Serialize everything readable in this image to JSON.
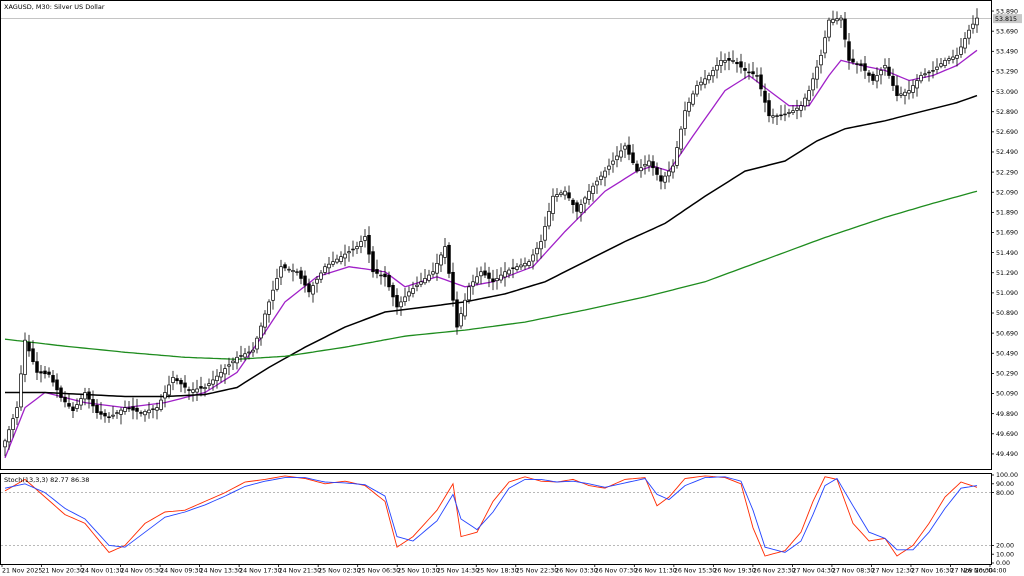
{
  "header": {
    "title": "XAGUSD, M30:  Silver US Dollar",
    "stoch_label": "Stoch(13,3,3) 82.77 86.38"
  },
  "price_badge": "53.815",
  "colors": {
    "bull_candle": "#ffffff",
    "bear_candle": "#000000",
    "ema_fast": "#a020c8",
    "ema_mid": "#000000",
    "ema_slow": "#1e8c1e",
    "stoch_main": "#ff2a00",
    "stoch_signal": "#2444ff",
    "grid_level": "#a0a0a0"
  },
  "chart_data": [
    {
      "type": "candlestick",
      "title": "XAGUSD, M30:  Silver US Dollar",
      "ylim": [
        49.35,
        53.98
      ],
      "y_ticks": [
        "53.890",
        "53.690",
        "53.490",
        "53.290",
        "53.090",
        "52.890",
        "52.690",
        "52.490",
        "52.290",
        "52.090",
        "51.890",
        "51.690",
        "51.490",
        "51.290",
        "51.090",
        "50.890",
        "50.690",
        "50.490",
        "50.290",
        "50.090",
        "49.890",
        "49.690",
        "49.490"
      ],
      "x_ticks": [
        "21 Nov 2025",
        "21 Nov 20:30",
        "24 Nov 01:30",
        "24 Nov 05:30",
        "24 Nov 09:30",
        "24 Nov 13:30",
        "24 Nov 17:30",
        "24 Nov 21:30",
        "25 Nov 02:30",
        "25 Nov 06:30",
        "25 Nov 10:30",
        "25 Nov 14:30",
        "25 Nov 18:30",
        "25 Nov 22:30",
        "26 Nov 03:30",
        "26 Nov 07:30",
        "26 Nov 11:30",
        "26 Nov 15:30",
        "26 Nov 19:30",
        "26 Nov 23:30",
        "27 Nov 04:30",
        "27 Nov 08:30",
        "27 Nov 12:30",
        "27 Nov 16:30",
        "27 Nov 20:30",
        "28 Nov 04:00"
      ],
      "close_anchors": [
        [
          0,
          49.62
        ],
        [
          3,
          49.95
        ],
        [
          5,
          50.62
        ],
        [
          8,
          50.3
        ],
        [
          11,
          50.28
        ],
        [
          14,
          50.05
        ],
        [
          17,
          49.92
        ],
        [
          20,
          50.1
        ],
        [
          23,
          49.9
        ],
        [
          26,
          49.85
        ],
        [
          30,
          49.95
        ],
        [
          34,
          49.9
        ],
        [
          38,
          49.95
        ],
        [
          42,
          50.25
        ],
        [
          46,
          50.12
        ],
        [
          50,
          50.15
        ],
        [
          54,
          50.3
        ],
        [
          58,
          50.45
        ],
        [
          62,
          50.52
        ],
        [
          66,
          51.0
        ],
        [
          69,
          51.35
        ],
        [
          73,
          51.3
        ],
        [
          76,
          51.1
        ],
        [
          80,
          51.35
        ],
        [
          84,
          51.45
        ],
        [
          88,
          51.55
        ],
        [
          90,
          51.65
        ],
        [
          92,
          51.3
        ],
        [
          95,
          51.25
        ],
        [
          98,
          50.95
        ],
        [
          101,
          51.1
        ],
        [
          104,
          51.2
        ],
        [
          107,
          51.3
        ],
        [
          110,
          51.55
        ],
        [
          113,
          50.75
        ],
        [
          116,
          51.15
        ],
        [
          119,
          51.3
        ],
        [
          122,
          51.2
        ],
        [
          125,
          51.3
        ],
        [
          128,
          51.35
        ],
        [
          131,
          51.4
        ],
        [
          134,
          51.6
        ],
        [
          137,
          52.05
        ],
        [
          140,
          52.1
        ],
        [
          143,
          51.9
        ],
        [
          146,
          52.1
        ],
        [
          149,
          52.25
        ],
        [
          152,
          52.4
        ],
        [
          155,
          52.55
        ],
        [
          158,
          52.3
        ],
        [
          161,
          52.4
        ],
        [
          164,
          52.2
        ],
        [
          167,
          52.35
        ],
        [
          170,
          52.9
        ],
        [
          173,
          53.15
        ],
        [
          176,
          53.25
        ],
        [
          179,
          53.4
        ],
        [
          182,
          53.4
        ],
        [
          185,
          53.3
        ],
        [
          188,
          53.25
        ],
        [
          191,
          52.85
        ],
        [
          194,
          52.85
        ],
        [
          197,
          52.9
        ],
        [
          199,
          52.95
        ],
        [
          201,
          53.1
        ],
        [
          204,
          53.45
        ],
        [
          206,
          53.8
        ],
        [
          209,
          53.82
        ],
        [
          211,
          53.4
        ],
        [
          214,
          53.35
        ],
        [
          217,
          53.2
        ],
        [
          220,
          53.35
        ],
        [
          223,
          53.05
        ],
        [
          226,
          53.1
        ],
        [
          229,
          53.25
        ],
        [
          232,
          53.3
        ],
        [
          235,
          53.4
        ],
        [
          238,
          53.45
        ],
        [
          241,
          53.7
        ],
        [
          243,
          53.82
        ]
      ],
      "series": [
        {
          "role": "ema_fast",
          "anchors": [
            [
              0,
              49.45
            ],
            [
              5,
              49.95
            ],
            [
              10,
              50.1
            ],
            [
              20,
              50.0
            ],
            [
              30,
              49.95
            ],
            [
              40,
              50.0
            ],
            [
              50,
              50.1
            ],
            [
              58,
              50.3
            ],
            [
              65,
              50.7
            ],
            [
              70,
              51.0
            ],
            [
              78,
              51.25
            ],
            [
              86,
              51.35
            ],
            [
              95,
              51.3
            ],
            [
              100,
              51.15
            ],
            [
              108,
              51.25
            ],
            [
              115,
              51.15
            ],
            [
              122,
              51.2
            ],
            [
              132,
              51.35
            ],
            [
              140,
              51.7
            ],
            [
              150,
              52.1
            ],
            [
              158,
              52.3
            ],
            [
              162,
              52.35
            ],
            [
              166,
              52.3
            ],
            [
              172,
              52.65
            ],
            [
              180,
              53.1
            ],
            [
              186,
              53.25
            ],
            [
              191,
              53.1
            ],
            [
              196,
              52.95
            ],
            [
              201,
              52.95
            ],
            [
              206,
              53.25
            ],
            [
              209,
              53.4
            ],
            [
              214,
              53.35
            ],
            [
              220,
              53.3
            ],
            [
              226,
              53.2
            ],
            [
              232,
              53.25
            ],
            [
              238,
              53.35
            ],
            [
              243,
              53.5
            ]
          ]
        },
        {
          "role": "ema_mid",
          "anchors": [
            [
              0,
              50.1
            ],
            [
              10,
              50.1
            ],
            [
              20,
              50.08
            ],
            [
              30,
              50.06
            ],
            [
              40,
              50.06
            ],
            [
              50,
              50.08
            ],
            [
              58,
              50.15
            ],
            [
              66,
              50.35
            ],
            [
              75,
              50.55
            ],
            [
              85,
              50.75
            ],
            [
              95,
              50.9
            ],
            [
              105,
              50.95
            ],
            [
              115,
              51.0
            ],
            [
              125,
              51.08
            ],
            [
              135,
              51.2
            ],
            [
              145,
              51.4
            ],
            [
              155,
              51.6
            ],
            [
              165,
              51.78
            ],
            [
              175,
              52.05
            ],
            [
              185,
              52.3
            ],
            [
              195,
              52.4
            ],
            [
              203,
              52.6
            ],
            [
              210,
              52.72
            ],
            [
              220,
              52.8
            ],
            [
              230,
              52.9
            ],
            [
              238,
              52.98
            ],
            [
              243,
              53.05
            ]
          ]
        },
        {
          "role": "ema_slow",
          "anchors": [
            [
              0,
              50.63
            ],
            [
              15,
              50.56
            ],
            [
              30,
              50.5
            ],
            [
              45,
              50.45
            ],
            [
              58,
              50.43
            ],
            [
              70,
              50.46
            ],
            [
              85,
              50.55
            ],
            [
              100,
              50.66
            ],
            [
              115,
              50.72
            ],
            [
              130,
              50.8
            ],
            [
              145,
              50.92
            ],
            [
              160,
              51.05
            ],
            [
              175,
              51.2
            ],
            [
              190,
              51.42
            ],
            [
              205,
              51.64
            ],
            [
              220,
              51.84
            ],
            [
              232,
              51.98
            ],
            [
              243,
              52.1
            ]
          ]
        }
      ]
    },
    {
      "type": "line",
      "title": "Stoch(13,3,3) 82.77 86.38",
      "ylim": [
        0,
        100
      ],
      "y_ticks": [
        100.0,
        90.0,
        80.0,
        20.0,
        10.0,
        0.0
      ],
      "levels": [
        80,
        20
      ],
      "series": [
        {
          "name": "main",
          "anchors": [
            [
              0,
              82
            ],
            [
              5,
              95
            ],
            [
              10,
              75
            ],
            [
              15,
              55
            ],
            [
              20,
              45
            ],
            [
              26,
              12
            ],
            [
              30,
              20
            ],
            [
              35,
              45
            ],
            [
              40,
              58
            ],
            [
              45,
              60
            ],
            [
              50,
              70
            ],
            [
              55,
              80
            ],
            [
              60,
              92
            ],
            [
              65,
              95
            ],
            [
              70,
              99
            ],
            [
              75,
              96
            ],
            [
              80,
              90
            ],
            [
              85,
              93
            ],
            [
              90,
              88
            ],
            [
              95,
              70
            ],
            [
              98,
              18
            ],
            [
              102,
              30
            ],
            [
              108,
              60
            ],
            [
              112,
              90
            ],
            [
              114,
              30
            ],
            [
              118,
              35
            ],
            [
              122,
              70
            ],
            [
              126,
              92
            ],
            [
              130,
              98
            ],
            [
              134,
              93
            ],
            [
              138,
              92
            ],
            [
              142,
              95
            ],
            [
              146,
              88
            ],
            [
              150,
              85
            ],
            [
              155,
              95
            ],
            [
              160,
              97
            ],
            [
              163,
              65
            ],
            [
              166,
              75
            ],
            [
              170,
              96
            ],
            [
              175,
              99
            ],
            [
              180,
              97
            ],
            [
              184,
              90
            ],
            [
              187,
              40
            ],
            [
              190,
              8
            ],
            [
              195,
              14
            ],
            [
              199,
              35
            ],
            [
              202,
              70
            ],
            [
              205,
              98
            ],
            [
              208,
              95
            ],
            [
              212,
              45
            ],
            [
              216,
              25
            ],
            [
              220,
              28
            ],
            [
              223,
              8
            ],
            [
              227,
              20
            ],
            [
              231,
              45
            ],
            [
              235,
              75
            ],
            [
              239,
              92
            ],
            [
              243,
              86
            ]
          ]
        },
        {
          "name": "signal",
          "anchors": [
            [
              0,
              85
            ],
            [
              5,
              90
            ],
            [
              10,
              80
            ],
            [
              15,
              62
            ],
            [
              20,
              50
            ],
            [
              26,
              20
            ],
            [
              30,
              18
            ],
            [
              35,
              35
            ],
            [
              40,
              52
            ],
            [
              45,
              58
            ],
            [
              50,
              66
            ],
            [
              55,
              76
            ],
            [
              60,
              87
            ],
            [
              65,
              93
            ],
            [
              70,
              97
            ],
            [
              75,
              97
            ],
            [
              80,
              92
            ],
            [
              85,
              91
            ],
            [
              90,
              89
            ],
            [
              95,
              76
            ],
            [
              98,
              30
            ],
            [
              102,
              25
            ],
            [
              108,
              48
            ],
            [
              112,
              78
            ],
            [
              114,
              50
            ],
            [
              118,
              38
            ],
            [
              122,
              58
            ],
            [
              126,
              85
            ],
            [
              130,
              95
            ],
            [
              134,
              95
            ],
            [
              138,
              92
            ],
            [
              142,
              93
            ],
            [
              146,
              90
            ],
            [
              150,
              86
            ],
            [
              155,
              91
            ],
            [
              160,
              96
            ],
            [
              163,
              78
            ],
            [
              166,
              72
            ],
            [
              170,
              88
            ],
            [
              175,
              97
            ],
            [
              180,
              98
            ],
            [
              184,
              93
            ],
            [
              187,
              60
            ],
            [
              190,
              18
            ],
            [
              195,
              12
            ],
            [
              199,
              25
            ],
            [
              202,
              55
            ],
            [
              205,
              88
            ],
            [
              208,
              96
            ],
            [
              212,
              65
            ],
            [
              216,
              35
            ],
            [
              220,
              28
            ],
            [
              223,
              15
            ],
            [
              227,
              15
            ],
            [
              231,
              35
            ],
            [
              235,
              62
            ],
            [
              239,
              85
            ],
            [
              243,
              88
            ]
          ]
        }
      ]
    }
  ]
}
